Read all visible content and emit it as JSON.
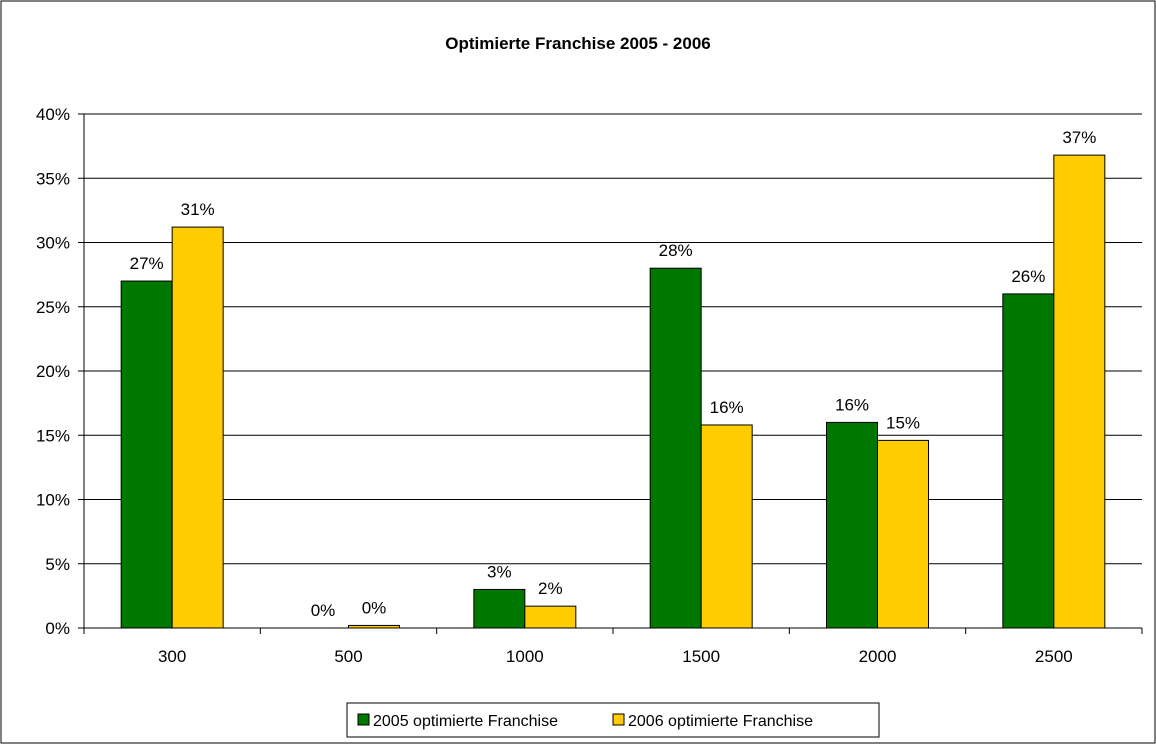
{
  "chart_data": {
    "type": "bar",
    "title": "Optimierte Franchise 2005 - 2006",
    "xlabel": "",
    "ylabel": "",
    "categories": [
      "300",
      "500",
      "1000",
      "1500",
      "2000",
      "2500"
    ],
    "series": [
      {
        "name": "2005 optimierte Franchise",
        "color": "#007800",
        "values": [
          27,
          0,
          3,
          28,
          16,
          26
        ],
        "labels": [
          "27%",
          "0%",
          "3%",
          "28%",
          "16%",
          "26%"
        ]
      },
      {
        "name": "2006 optimierte Franchise",
        "color": "#FFCC00",
        "values": [
          31.2,
          0.2,
          1.7,
          15.8,
          14.6,
          36.8
        ],
        "labels": [
          "31%",
          "0%",
          "2%",
          "16%",
          "15%",
          "37%"
        ]
      }
    ],
    "ylim": [
      0,
      40
    ],
    "yticks": [
      0,
      5,
      10,
      15,
      20,
      25,
      30,
      35,
      40
    ],
    "ytick_labels": [
      "0%",
      "5%",
      "10%",
      "15%",
      "20%",
      "25%",
      "30%",
      "35%",
      "40%"
    ],
    "grid": true,
    "legend_position": "bottom"
  }
}
